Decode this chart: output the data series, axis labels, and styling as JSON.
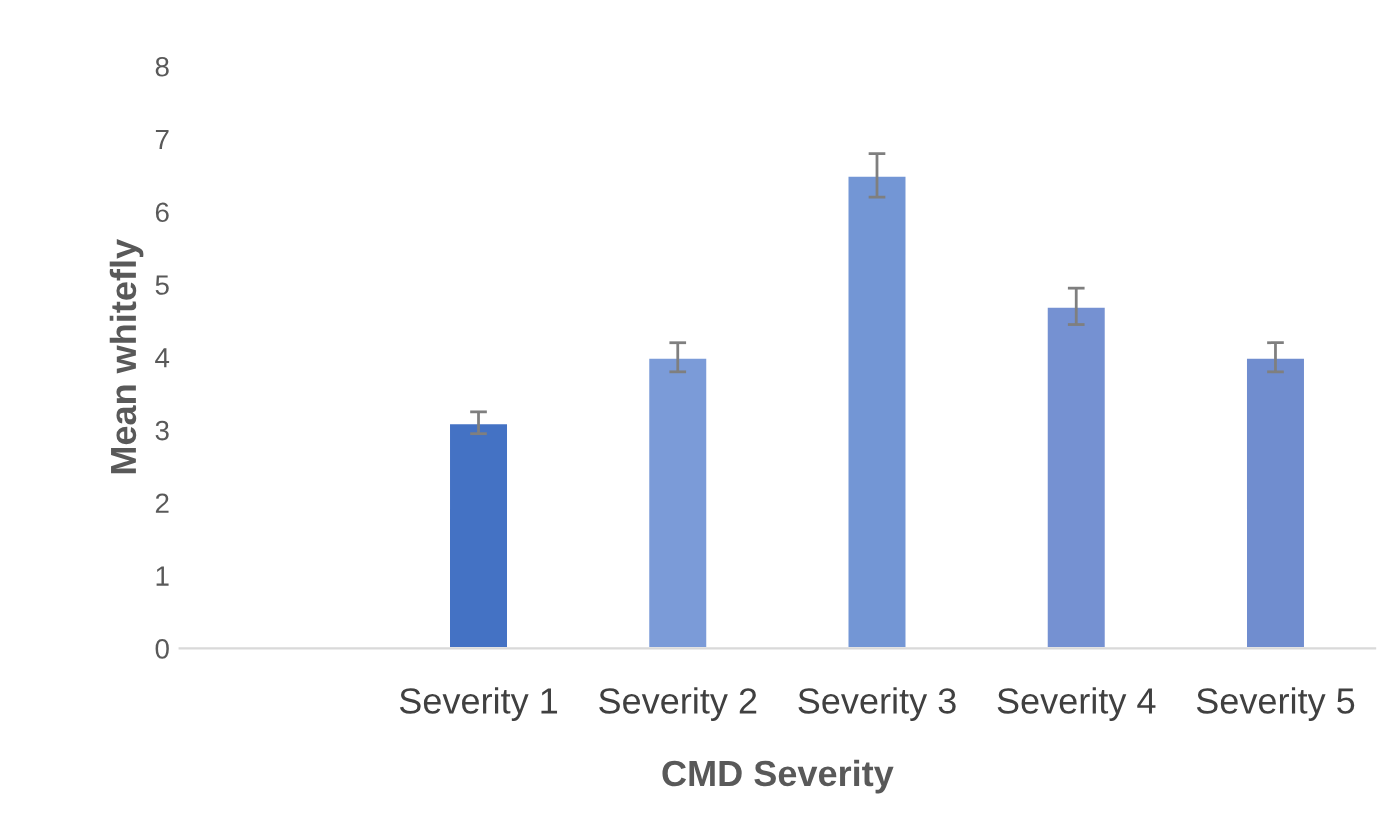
{
  "chart_data": {
    "type": "bar",
    "xlabel": "CMD Severity",
    "ylabel": "Mean whitefly",
    "categories": [
      null,
      "Severity 1",
      "Severity 2",
      "Severity 3",
      "Severity 4",
      "Severity 5"
    ],
    "values": [
      null,
      3.1,
      4.0,
      6.5,
      4.7,
      4.0
    ],
    "errors": [
      null,
      0.15,
      0.2,
      0.3,
      0.25,
      0.2
    ],
    "colors": [
      "#4472c4",
      "#4472c4",
      "#7b9bd8",
      "#7396d5",
      "#7591d2",
      "#708dcf"
    ],
    "ylim": [
      0,
      8
    ],
    "yticks": [
      0,
      1,
      2,
      3,
      4,
      5,
      6,
      7,
      8
    ],
    "grid": false,
    "legend": false
  }
}
